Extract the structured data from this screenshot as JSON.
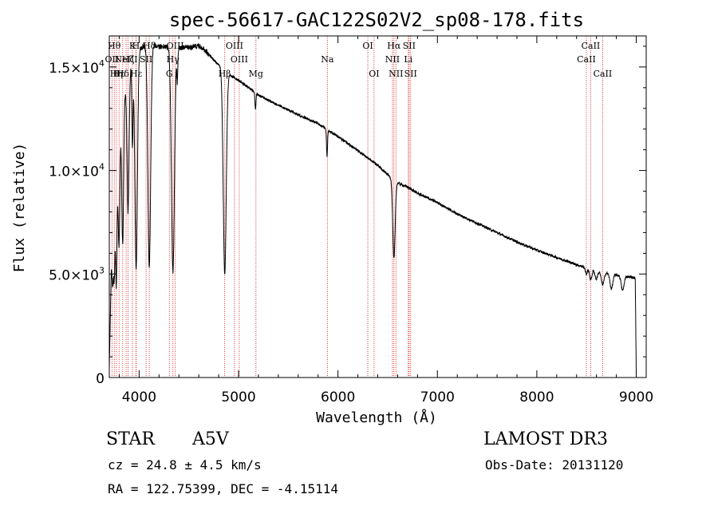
{
  "chart_data": {
    "type": "line",
    "title": "spec-56617-GAC122S02V2_sp08-178.fits",
    "xlabel": "Wavelength (Å)",
    "ylabel": "Flux (relative)",
    "xlim": [
      3700,
      9100
    ],
    "ylim": [
      0,
      16500
    ],
    "x_ticks": [
      4000,
      5000,
      6000,
      7000,
      8000,
      9000
    ],
    "x_tick_labels": [
      "4000",
      "5000",
      "6000",
      "7000",
      "8000",
      "9000"
    ],
    "y_ticks": [
      0,
      5000,
      10000,
      15000
    ],
    "y_tick_labels": [
      {
        "mant": "0",
        "exp": ""
      },
      {
        "mant": "5.0×10",
        "exp": "3"
      },
      {
        "mant": "1.0×10",
        "exp": "4"
      },
      {
        "mant": "1.5×10",
        "exp": "4"
      }
    ],
    "continuum": [
      [
        3700,
        400
      ],
      [
        3720,
        5200
      ],
      [
        3760,
        8000
      ],
      [
        3800,
        11500
      ],
      [
        3850,
        13500
      ],
      [
        3900,
        14800
      ],
      [
        3950,
        15600
      ],
      [
        4000,
        15900
      ],
      [
        4100,
        16100
      ],
      [
        4200,
        16000
      ],
      [
        4300,
        15950
      ],
      [
        4400,
        15900
      ],
      [
        4500,
        15950
      ],
      [
        4600,
        16000
      ],
      [
        4650,
        15900
      ],
      [
        4700,
        15600
      ],
      [
        4800,
        15100
      ],
      [
        4900,
        14650
      ],
      [
        5000,
        14350
      ],
      [
        5100,
        14000
      ],
      [
        5200,
        13650
      ],
      [
        5400,
        13150
      ],
      [
        5600,
        12700
      ],
      [
        5800,
        12250
      ],
      [
        6000,
        11650
      ],
      [
        6200,
        10950
      ],
      [
        6400,
        10250
      ],
      [
        6500,
        9800
      ],
      [
        6600,
        9400
      ],
      [
        6700,
        9200
      ],
      [
        6800,
        8900
      ],
      [
        7000,
        8450
      ],
      [
        7200,
        7900
      ],
      [
        7400,
        7450
      ],
      [
        7600,
        7000
      ],
      [
        7800,
        6550
      ],
      [
        8000,
        6150
      ],
      [
        8200,
        5800
      ],
      [
        8400,
        5450
      ],
      [
        8600,
        5150
      ],
      [
        8800,
        4950
      ],
      [
        8950,
        4850
      ],
      [
        8990,
        4800
      ],
      [
        9000,
        200
      ]
    ],
    "absorption_lines": [
      {
        "center": 3735,
        "depth": 1800,
        "width": 6
      },
      {
        "center": 3750,
        "depth": 2500,
        "width": 6
      },
      {
        "center": 3771,
        "depth": 4500,
        "width": 7
      },
      {
        "center": 3798,
        "depth": 5000,
        "width": 8
      },
      {
        "center": 3835,
        "depth": 6500,
        "width": 9
      },
      {
        "center": 3889,
        "depth": 6500,
        "width": 10
      },
      {
        "center": 3933,
        "depth": 4000,
        "width": 6
      },
      {
        "center": 3970,
        "depth": 10500,
        "width": 13
      },
      {
        "center": 4102,
        "depth": 10800,
        "width": 14
      },
      {
        "center": 4340,
        "depth": 10800,
        "width": 15
      },
      {
        "center": 4384,
        "depth": 1500,
        "width": 5
      },
      {
        "center": 4861,
        "depth": 9800,
        "width": 15
      },
      {
        "center": 5170,
        "depth": 800,
        "width": 5
      },
      {
        "center": 5890,
        "depth": 1300,
        "width": 5
      },
      {
        "center": 6563,
        "depth": 3800,
        "width": 12
      },
      {
        "center": 8498,
        "depth": 300,
        "width": 10
      },
      {
        "center": 8542,
        "depth": 500,
        "width": 12
      },
      {
        "center": 8598,
        "depth": 400,
        "width": 12
      },
      {
        "center": 8662,
        "depth": 600,
        "width": 14
      },
      {
        "center": 8750,
        "depth": 700,
        "width": 14
      },
      {
        "center": 8863,
        "depth": 700,
        "width": 14
      }
    ],
    "line_markers": [
      {
        "x": 3727,
        "label": "OII",
        "row": 1
      },
      {
        "x": 3750,
        "label": "Hθ",
        "row": 0
      },
      {
        "x": 3771,
        "label": "Hη",
        "row": 2
      },
      {
        "x": 3798,
        "label": "Hε",
        "row": 2
      },
      {
        "x": 3835,
        "label": "Hδ",
        "row": 2
      },
      {
        "x": 3869,
        "label": "NeIII",
        "row": 1
      },
      {
        "x": 3889,
        "label": "Hζ",
        "row": 1
      },
      {
        "x": 3933,
        "label": "K",
        "row": 0
      },
      {
        "x": 3968,
        "label": "H",
        "row": 0
      },
      {
        "x": 3970,
        "label": "Hε",
        "row": 2
      },
      {
        "x": 4070,
        "label": "SII",
        "row": 1
      },
      {
        "x": 4102,
        "label": "Hδ",
        "row": 0
      },
      {
        "x": 4304,
        "label": "G",
        "row": 2
      },
      {
        "x": 4340,
        "label": "Hγ",
        "row": 1
      },
      {
        "x": 4363,
        "label": "OIII",
        "row": 0
      },
      {
        "x": 4861,
        "label": "Hβ",
        "row": 2
      },
      {
        "x": 4959,
        "label": "OIII",
        "row": 0
      },
      {
        "x": 5007,
        "label": "OIII",
        "row": 1
      },
      {
        "x": 5175,
        "label": "Mg",
        "row": 2
      },
      {
        "x": 5893,
        "label": "Na",
        "row": 1
      },
      {
        "x": 6300,
        "label": "OI",
        "row": 0
      },
      {
        "x": 6363,
        "label": "OI",
        "row": 2
      },
      {
        "x": 6548,
        "label": "NII",
        "row": 1
      },
      {
        "x": 6563,
        "label": "Hα",
        "row": 0
      },
      {
        "x": 6583,
        "label": "NII",
        "row": 2
      },
      {
        "x": 6707,
        "label": "Li",
        "row": 1
      },
      {
        "x": 6716,
        "label": "SII",
        "row": 0
      },
      {
        "x": 6731,
        "label": "SII",
        "row": 2
      },
      {
        "x": 8498,
        "label": "CaII",
        "row": 1
      },
      {
        "x": 8542,
        "label": "CaII",
        "row": 0
      },
      {
        "x": 8662,
        "label": "CaII",
        "row": 2
      }
    ]
  },
  "info": {
    "class": "STAR",
    "subclass": "A5V",
    "survey": "LAMOST DR3",
    "cz": "cz = 24.8 ± 4.5 km/s",
    "obs_date": "Obs-Date: 20131120",
    "coords": "RA = 122.75399, DEC =  -4.15114"
  },
  "colors": {
    "line_marker": "#cc0000",
    "spectrum": "#000000",
    "axes": "#000000"
  }
}
